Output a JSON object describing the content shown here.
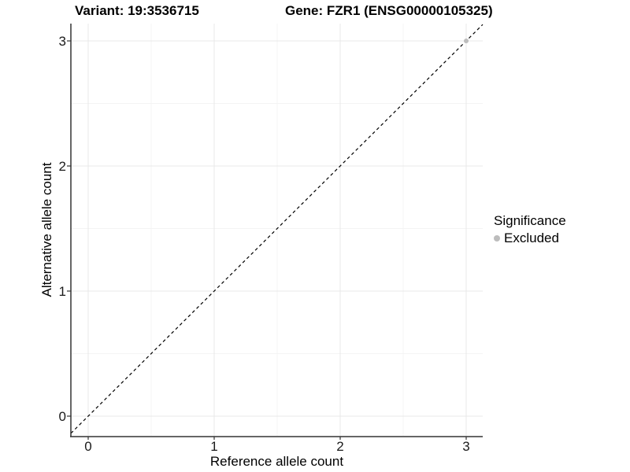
{
  "chart_data": {
    "type": "scatter",
    "title_left": "Variant: 19:3536715",
    "title_right": "Gene: FZR1 (ENSG00000105325)",
    "xlabel": "Reference allele count",
    "ylabel": "Alternative allele count",
    "xlim": [
      -0.14,
      3.13
    ],
    "ylim": [
      -0.16,
      3.14
    ],
    "x_ticks": [
      0,
      1,
      2,
      3
    ],
    "y_ticks": [
      0,
      1,
      2,
      3
    ],
    "x_minor": [
      0.5,
      1.5,
      2.5
    ],
    "y_minor": [
      0.5,
      1.5,
      2.5
    ],
    "grid": "major+minor",
    "series": [
      {
        "name": "Excluded",
        "color": "#bdbdbd",
        "points": [
          {
            "x": 3,
            "y": 3
          }
        ]
      }
    ],
    "reference_line": {
      "type": "identity",
      "slope": 1,
      "intercept": 0,
      "style": "dashed",
      "color": "#000000"
    },
    "legend": {
      "title": "Significance",
      "position": "right",
      "entries": [
        {
          "label": "Excluded",
          "color": "#bdbdbd"
        }
      ]
    }
  },
  "colors": {
    "background": "#ffffff",
    "grid_major": "#e8e8e8",
    "grid_minor": "#f4f4f4",
    "axis_line": "#333333",
    "tick_text": "#1a1a1a",
    "point": "#bdbdbd"
  }
}
